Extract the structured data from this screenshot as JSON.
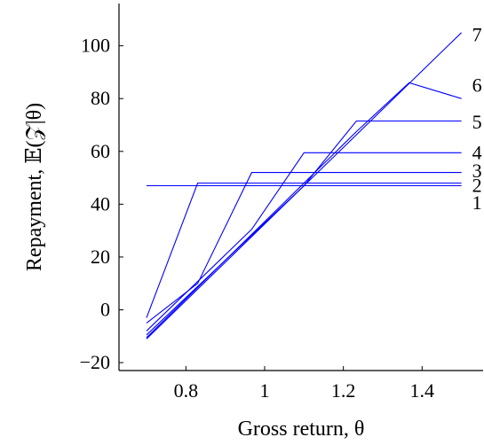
{
  "chart_data": {
    "type": "line",
    "title": "",
    "xlabel": "Gross return, θ",
    "ylabel": "Repayment, 𝔼(𝒵|θ)",
    "xlim": [
      0.63,
      1.555
    ],
    "ylim": [
      -23,
      116
    ],
    "xticks": [
      0.8,
      1.0,
      1.2,
      1.4
    ],
    "xtick_labels": [
      "0.8",
      "1",
      "1.2",
      "1.4"
    ],
    "yticks": [
      -20,
      0,
      20,
      40,
      60,
      80,
      100
    ],
    "ytick_labels": [
      "−20",
      "0",
      "20",
      "40",
      "60",
      "80",
      "100"
    ],
    "grid": false,
    "series": [
      {
        "name": "1",
        "x": [
          0.7,
          1.5
        ],
        "y": [
          47.0,
          47.0
        ]
      },
      {
        "name": "2",
        "x": [
          0.7,
          0.83,
          1.5
        ],
        "y": [
          -3,
          48.0,
          48.0
        ]
      },
      {
        "name": "3",
        "x": [
          0.7,
          0.83,
          0.967,
          1.5
        ],
        "y": [
          -5,
          10,
          52.0,
          52.0
        ]
      },
      {
        "name": "4",
        "x": [
          0.7,
          0.967,
          1.1,
          1.5
        ],
        "y": [
          -8,
          30.5,
          59.5,
          59.5
        ]
      },
      {
        "name": "5",
        "x": [
          0.7,
          1.1,
          1.233,
          1.5
        ],
        "y": [
          -9.5,
          47.0,
          71.5,
          71.5
        ]
      },
      {
        "name": "6",
        "x": [
          0.7,
          1.233,
          1.367,
          1.5
        ],
        "y": [
          -10.5,
          67.5,
          86.0,
          80.0
        ]
      },
      {
        "name": "7",
        "x": [
          0.7,
          1.5
        ],
        "y": [
          -11,
          105.0
        ]
      }
    ],
    "series_labels": [
      {
        "text": "1",
        "y": 40.5
      },
      {
        "text": "2",
        "y": 47.0
      },
      {
        "text": "3",
        "y": 52.5
      },
      {
        "text": "4",
        "y": 59.5
      },
      {
        "text": "5",
        "y": 71.0
      },
      {
        "text": "6",
        "y": 85.0
      },
      {
        "text": "7",
        "y": 104.0
      }
    ]
  }
}
